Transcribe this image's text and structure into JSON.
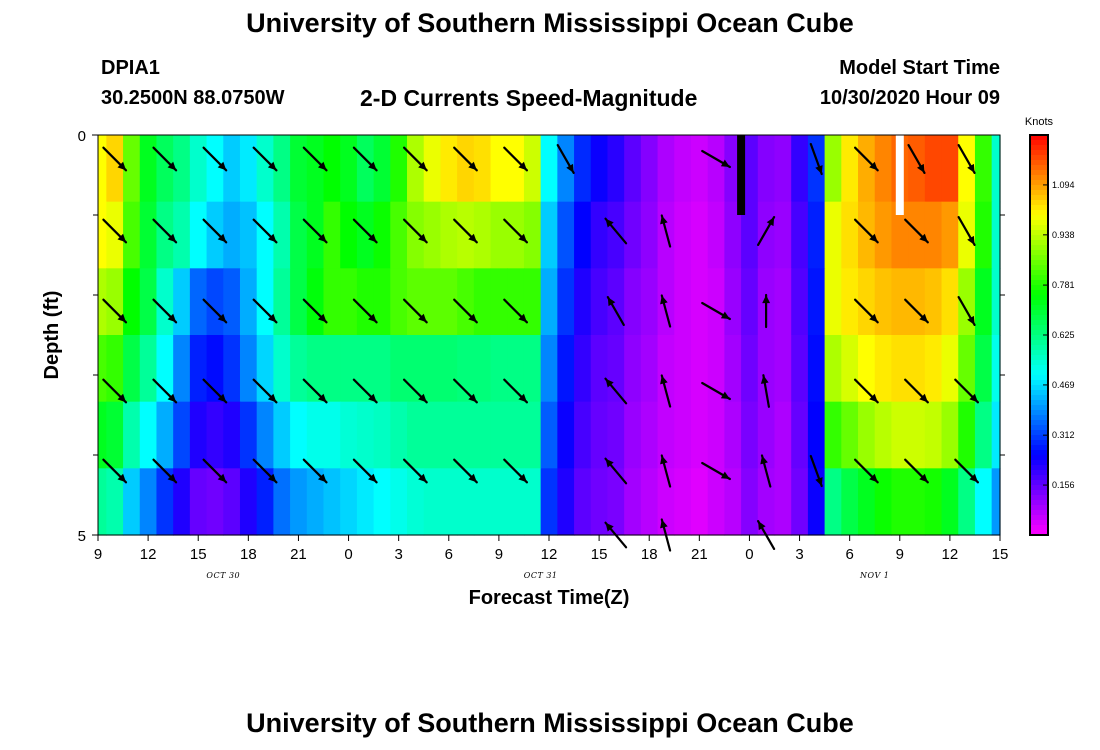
{
  "header": {
    "title": "University of Southern Mississippi Ocean Cube",
    "station_id": "DPIA1",
    "station_coords": "30.2500N 88.0750W",
    "chart_title": "2-D Currents Speed-Magnitude",
    "model_start_label": "Model Start Time",
    "model_start_value": "10/30/2020 Hour 09"
  },
  "footer": {
    "title": "University of Southern Mississippi Ocean Cube"
  },
  "chart_data": {
    "type": "heatmap",
    "title": "2-D Currents Speed-Magnitude",
    "xlabel": "Forecast Time(Z)",
    "ylabel": "Depth (ft)",
    "x_unit": "hours since model start (10/30/2020 09Z)",
    "xlim": [
      0,
      54
    ],
    "ylim": [
      0,
      5
    ],
    "y_inverted": true,
    "x_tick_labels": [
      "9",
      "12",
      "15",
      "18",
      "21",
      "0",
      "3",
      "6",
      "9",
      "12",
      "15",
      "18",
      "21",
      "0",
      "3",
      "6",
      "9",
      "12",
      "15"
    ],
    "x_tick_hours": [
      0,
      3,
      6,
      9,
      12,
      15,
      18,
      21,
      24,
      27,
      30,
      33,
      36,
      39,
      42,
      45,
      48,
      51,
      54
    ],
    "y_tick_labels": [
      {
        "depth": 0,
        "label": "0"
      },
      {
        "depth": 5,
        "label": "5"
      }
    ],
    "y_minor_ticks": [
      1,
      2,
      3,
      4
    ],
    "date_labels": [
      {
        "hour": 7.5,
        "label": "OCT 30"
      },
      {
        "hour": 26.5,
        "label": "OCT 31"
      },
      {
        "hour": 46.5,
        "label": "NOV 1"
      }
    ],
    "colorbar": {
      "unit": "Knots",
      "min": 0,
      "max": 1.25,
      "tick_values": [
        "1.094",
        "0.938",
        "0.781",
        "0.625",
        "0.469",
        "0.312",
        "0.156"
      ]
    },
    "depth_rows": [
      0,
      1,
      2,
      3,
      4,
      5
    ],
    "speed_time_hours": [
      0,
      1,
      2,
      3,
      4,
      5,
      6,
      7,
      8,
      9,
      10,
      11,
      12,
      13,
      14,
      15,
      16,
      17,
      18,
      19,
      20,
      21,
      22,
      23,
      24,
      25,
      26,
      27,
      28,
      29,
      30,
      31,
      32,
      33,
      34,
      35,
      36,
      37,
      38,
      39,
      40,
      41,
      42,
      43,
      44,
      45,
      46,
      47,
      48,
      49,
      50,
      51,
      52,
      53,
      54
    ],
    "speed_profiles": [
      [
        1.0,
        1.04,
        0.85,
        0.72,
        0.66,
        0.62,
        0.55,
        0.5,
        0.45,
        0.48,
        0.55,
        0.62,
        0.7,
        0.72,
        0.75,
        0.72,
        0.66,
        0.7,
        0.78,
        0.92,
        0.98,
        1.02,
        1.04,
        1.03,
        1.0,
        1.0,
        0.95,
        0.5,
        0.38,
        0.29,
        0.24,
        0.21,
        0.16,
        0.12,
        0.08,
        0.06,
        0.05,
        0.07,
        0.12,
        0.16,
        0.12,
        0.11,
        0.2,
        0.3,
        0.9,
        1.02,
        1.08,
        1.12,
        1.15,
        1.16,
        1.18,
        1.18,
        1.0,
        0.8,
        0.55
      ],
      [
        1.0,
        0.98,
        0.82,
        0.7,
        0.62,
        0.58,
        0.5,
        0.45,
        0.42,
        0.44,
        0.5,
        0.58,
        0.68,
        0.72,
        0.8,
        0.75,
        0.72,
        0.76,
        0.82,
        0.88,
        0.9,
        0.92,
        0.93,
        0.92,
        0.9,
        0.9,
        0.88,
        0.45,
        0.33,
        0.25,
        0.2,
        0.18,
        0.14,
        0.11,
        0.07,
        0.05,
        0.04,
        0.06,
        0.11,
        0.16,
        0.11,
        0.1,
        0.18,
        0.28,
        0.98,
        1.03,
        1.07,
        1.1,
        1.12,
        1.12,
        1.12,
        1.1,
        0.98,
        0.78,
        0.55
      ],
      [
        0.92,
        0.9,
        0.75,
        0.68,
        0.55,
        0.45,
        0.35,
        0.32,
        0.34,
        0.42,
        0.5,
        0.6,
        0.68,
        0.74,
        0.8,
        0.8,
        0.78,
        0.78,
        0.82,
        0.84,
        0.84,
        0.84,
        0.82,
        0.8,
        0.8,
        0.8,
        0.8,
        0.42,
        0.3,
        0.22,
        0.18,
        0.16,
        0.12,
        0.1,
        0.07,
        0.05,
        0.04,
        0.05,
        0.1,
        0.15,
        0.1,
        0.09,
        0.17,
        0.27,
        0.98,
        1.02,
        1.04,
        1.06,
        1.07,
        1.07,
        1.06,
        1.03,
        0.9,
        0.72,
        0.55
      ],
      [
        0.82,
        0.8,
        0.68,
        0.6,
        0.5,
        0.38,
        0.28,
        0.26,
        0.3,
        0.38,
        0.46,
        0.55,
        0.6,
        0.62,
        0.62,
        0.62,
        0.62,
        0.62,
        0.64,
        0.64,
        0.64,
        0.64,
        0.63,
        0.63,
        0.62,
        0.62,
        0.62,
        0.38,
        0.27,
        0.2,
        0.16,
        0.15,
        0.11,
        0.09,
        0.06,
        0.05,
        0.04,
        0.05,
        0.09,
        0.14,
        0.1,
        0.09,
        0.16,
        0.26,
        0.92,
        0.96,
        1.0,
        1.02,
        1.03,
        1.03,
        1.02,
        0.98,
        0.85,
        0.68,
        0.52
      ],
      [
        0.72,
        0.7,
        0.58,
        0.5,
        0.42,
        0.32,
        0.22,
        0.2,
        0.22,
        0.3,
        0.38,
        0.45,
        0.5,
        0.52,
        0.52,
        0.54,
        0.55,
        0.56,
        0.58,
        0.6,
        0.6,
        0.6,
        0.6,
        0.6,
        0.6,
        0.6,
        0.6,
        0.34,
        0.24,
        0.18,
        0.15,
        0.14,
        0.1,
        0.08,
        0.06,
        0.05,
        0.04,
        0.05,
        0.08,
        0.13,
        0.1,
        0.08,
        0.15,
        0.25,
        0.8,
        0.85,
        0.9,
        0.93,
        0.95,
        0.95,
        0.94,
        0.9,
        0.78,
        0.62,
        0.48
      ],
      [
        0.6,
        0.58,
        0.45,
        0.38,
        0.3,
        0.22,
        0.15,
        0.14,
        0.16,
        0.22,
        0.28,
        0.36,
        0.4,
        0.42,
        0.44,
        0.46,
        0.48,
        0.5,
        0.52,
        0.54,
        0.55,
        0.55,
        0.55,
        0.55,
        0.55,
        0.55,
        0.55,
        0.3,
        0.22,
        0.16,
        0.14,
        0.13,
        0.09,
        0.07,
        0.05,
        0.04,
        0.03,
        0.05,
        0.07,
        0.12,
        0.09,
        0.08,
        0.14,
        0.24,
        0.62,
        0.68,
        0.72,
        0.76,
        0.78,
        0.78,
        0.77,
        0.72,
        0.62,
        0.5,
        0.4
      ]
    ],
    "vector_time_hours": [
      1,
      4,
      7,
      10,
      13,
      16,
      19,
      22,
      25,
      28,
      31,
      34,
      37,
      40,
      43,
      46,
      49,
      52
    ],
    "vector_depths": [
      0.3,
      1.2,
      2.2,
      3.2,
      4.2,
      5.0
    ],
    "vector_directions_deg": [
      [
        135,
        135,
        135,
        135,
        135,
        135,
        135,
        135,
        135,
        150,
        null,
        null,
        120,
        null,
        160,
        135,
        150,
        150
      ],
      [
        135,
        135,
        135,
        135,
        135,
        135,
        135,
        135,
        135,
        null,
        320,
        345,
        null,
        30,
        null,
        135,
        135,
        150
      ],
      [
        135,
        135,
        135,
        135,
        135,
        135,
        135,
        135,
        135,
        null,
        330,
        345,
        120,
        0,
        null,
        135,
        135,
        150
      ],
      [
        135,
        135,
        135,
        135,
        135,
        135,
        135,
        135,
        135,
        null,
        320,
        345,
        120,
        350,
        null,
        135,
        135,
        135
      ],
      [
        135,
        135,
        135,
        135,
        135,
        135,
        135,
        135,
        135,
        null,
        320,
        345,
        120,
        345,
        160,
        135,
        135,
        135
      ],
      [
        null,
        null,
        null,
        null,
        null,
        null,
        null,
        null,
        null,
        null,
        320,
        345,
        null,
        330,
        null,
        null,
        null,
        null
      ]
    ],
    "missing_cells": [
      {
        "hour": 38.5,
        "depth_range": [
          0,
          1
        ],
        "color": "#000000"
      },
      {
        "hour": 48,
        "depth_range": [
          0,
          1
        ],
        "color": "#ffffff"
      }
    ]
  }
}
